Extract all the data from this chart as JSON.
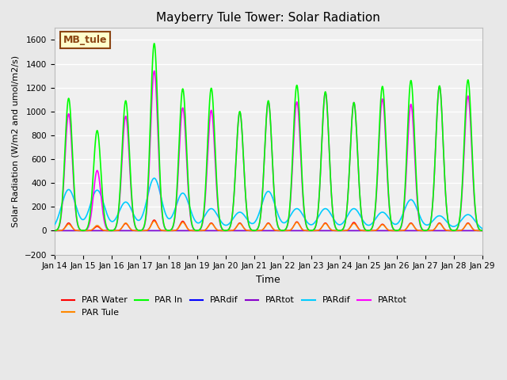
{
  "title": "Mayberry Tule Tower: Solar Radiation",
  "xlabel": "Time",
  "ylabel": "Solar Radiation (W/m2 and umol/m2/s)",
  "ylim": [
    -200,
    1700
  ],
  "yticks": [
    -200,
    0,
    200,
    400,
    600,
    800,
    1000,
    1200,
    1400,
    1600
  ],
  "xticklabels": [
    "Jan 14",
    "Jan 15",
    "Jan 16",
    "Jan 17",
    "Jan 18",
    "Jan 19",
    "Jan 20",
    "Jan 21",
    "Jan 22",
    "Jan 23",
    "Jan 24",
    "Jan 25",
    "Jan 26",
    "Jan 27",
    "Jan 28",
    "Jan 29"
  ],
  "bg_color": "#e8e8e8",
  "plot_bg_color": "#f0f0f0",
  "grid_color": "white",
  "legend_label": "MB_tule",
  "legend_bg": "#ffffcc",
  "legend_edge": "#8B4513",
  "peaks_green": [
    1110,
    840,
    1090,
    1570,
    1190,
    1195,
    1000,
    1090,
    1220,
    1165,
    1075,
    1210,
    1260,
    1215,
    1265
  ],
  "peaks_magenta": [
    980,
    505,
    960,
    1340,
    1030,
    1010,
    995,
    1080,
    1080,
    1160,
    1075,
    1105,
    1060,
    1210,
    1130
  ],
  "peaks_red": [
    65,
    35,
    60,
    90,
    80,
    65,
    65,
    65,
    75,
    65,
    70,
    55,
    65,
    65,
    65
  ],
  "peaks_orange": [
    55,
    45,
    65,
    80,
    70,
    60,
    60,
    60,
    70,
    60,
    60,
    50,
    60,
    60,
    60
  ],
  "peaks_cyan": [
    345,
    340,
    240,
    440,
    315,
    185,
    155,
    330,
    185,
    185,
    185,
    155,
    260,
    125,
    135
  ],
  "series": {
    "PAR_Water": {
      "color": "#ff0000",
      "lw": 1.0,
      "label": "PAR Water"
    },
    "PAR_Tule": {
      "color": "#ff8800",
      "lw": 1.0,
      "label": "PAR Tule"
    },
    "PAR_In": {
      "color": "#00ff00",
      "lw": 1.2,
      "label": "PAR In"
    },
    "PARdif_blue": {
      "color": "#0000ff",
      "lw": 1.0,
      "label": "PARdif"
    },
    "PARtot_purple": {
      "color": "#8800cc",
      "lw": 1.0,
      "label": "PARtot"
    },
    "PARdif_cyan": {
      "color": "#00ccff",
      "lw": 1.2,
      "label": "PARdif"
    },
    "PARtot_magenta": {
      "color": "#ff00ff",
      "lw": 1.2,
      "label": "PARtot"
    }
  }
}
